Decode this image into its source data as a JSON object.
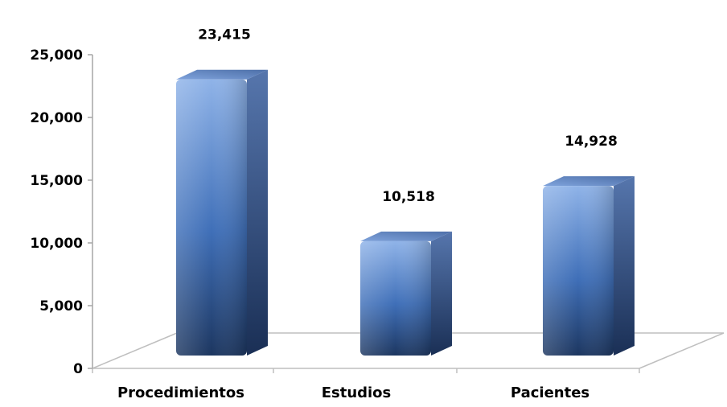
{
  "chart_data": {
    "type": "bar",
    "style": "3d-column",
    "title": "",
    "xlabel": "",
    "ylabel": "",
    "categories": [
      "Procedimientos",
      "Estudios",
      "Pacientes"
    ],
    "values": [
      23415,
      10518,
      14928
    ],
    "value_labels": [
      "23,415",
      "10,518",
      "14,928"
    ],
    "ylim": [
      0,
      25000
    ],
    "yticks": [
      0,
      5000,
      10000,
      15000,
      20000,
      25000
    ],
    "ytick_labels": [
      "0",
      "5,000",
      "10,000",
      "15,000",
      "20,000",
      "25,000"
    ],
    "grid": false,
    "legend": "none",
    "colors": {
      "bar_front_light": "#8fb3e8",
      "bar_front_dark": "#1c3660",
      "bar_side": "#34578c",
      "bar_top": "#6a8cc8",
      "floor_line": "#bfbfbf",
      "axis_line": "#a6a6a6"
    }
  }
}
